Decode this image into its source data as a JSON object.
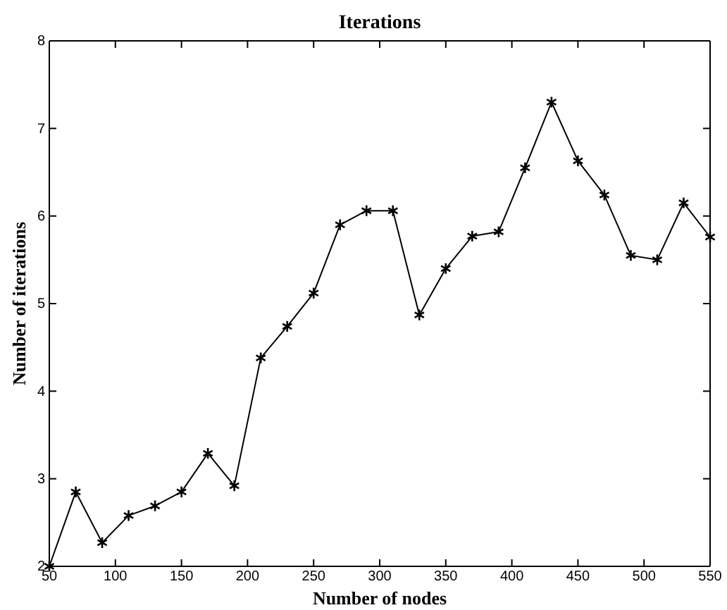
{
  "chart_data": {
    "type": "line",
    "title": "Iterations",
    "xlabel": "Number of nodes",
    "ylabel": "Number of iterations",
    "x": [
      50,
      70,
      90,
      110,
      130,
      150,
      170,
      190,
      210,
      230,
      250,
      270,
      290,
      310,
      330,
      350,
      370,
      390,
      410,
      430,
      450,
      470,
      490,
      510,
      530,
      550
    ],
    "series": [
      {
        "color": "#000000",
        "values": [
          2,
          2.85,
          2.27,
          2.58,
          2.69,
          2.85,
          3.29,
          2.92,
          4.38,
          4.74,
          5.12,
          5.9,
          6.06,
          6.06,
          4.87,
          5.4,
          5.77,
          5.82,
          6.55,
          7.3,
          6.63,
          6.24,
          5.55,
          5.5,
          6.15,
          5.76
        ]
      }
    ],
    "xlim": [
      50,
      550
    ],
    "xticks": [
      50,
      100,
      150,
      200,
      250,
      300,
      350,
      400,
      450,
      500,
      550
    ],
    "ylim": [
      2,
      8
    ],
    "yticks": [
      2,
      3,
      4,
      5,
      6,
      7,
      8
    ],
    "marker": "cross",
    "line_style": "solid",
    "grid": false
  }
}
